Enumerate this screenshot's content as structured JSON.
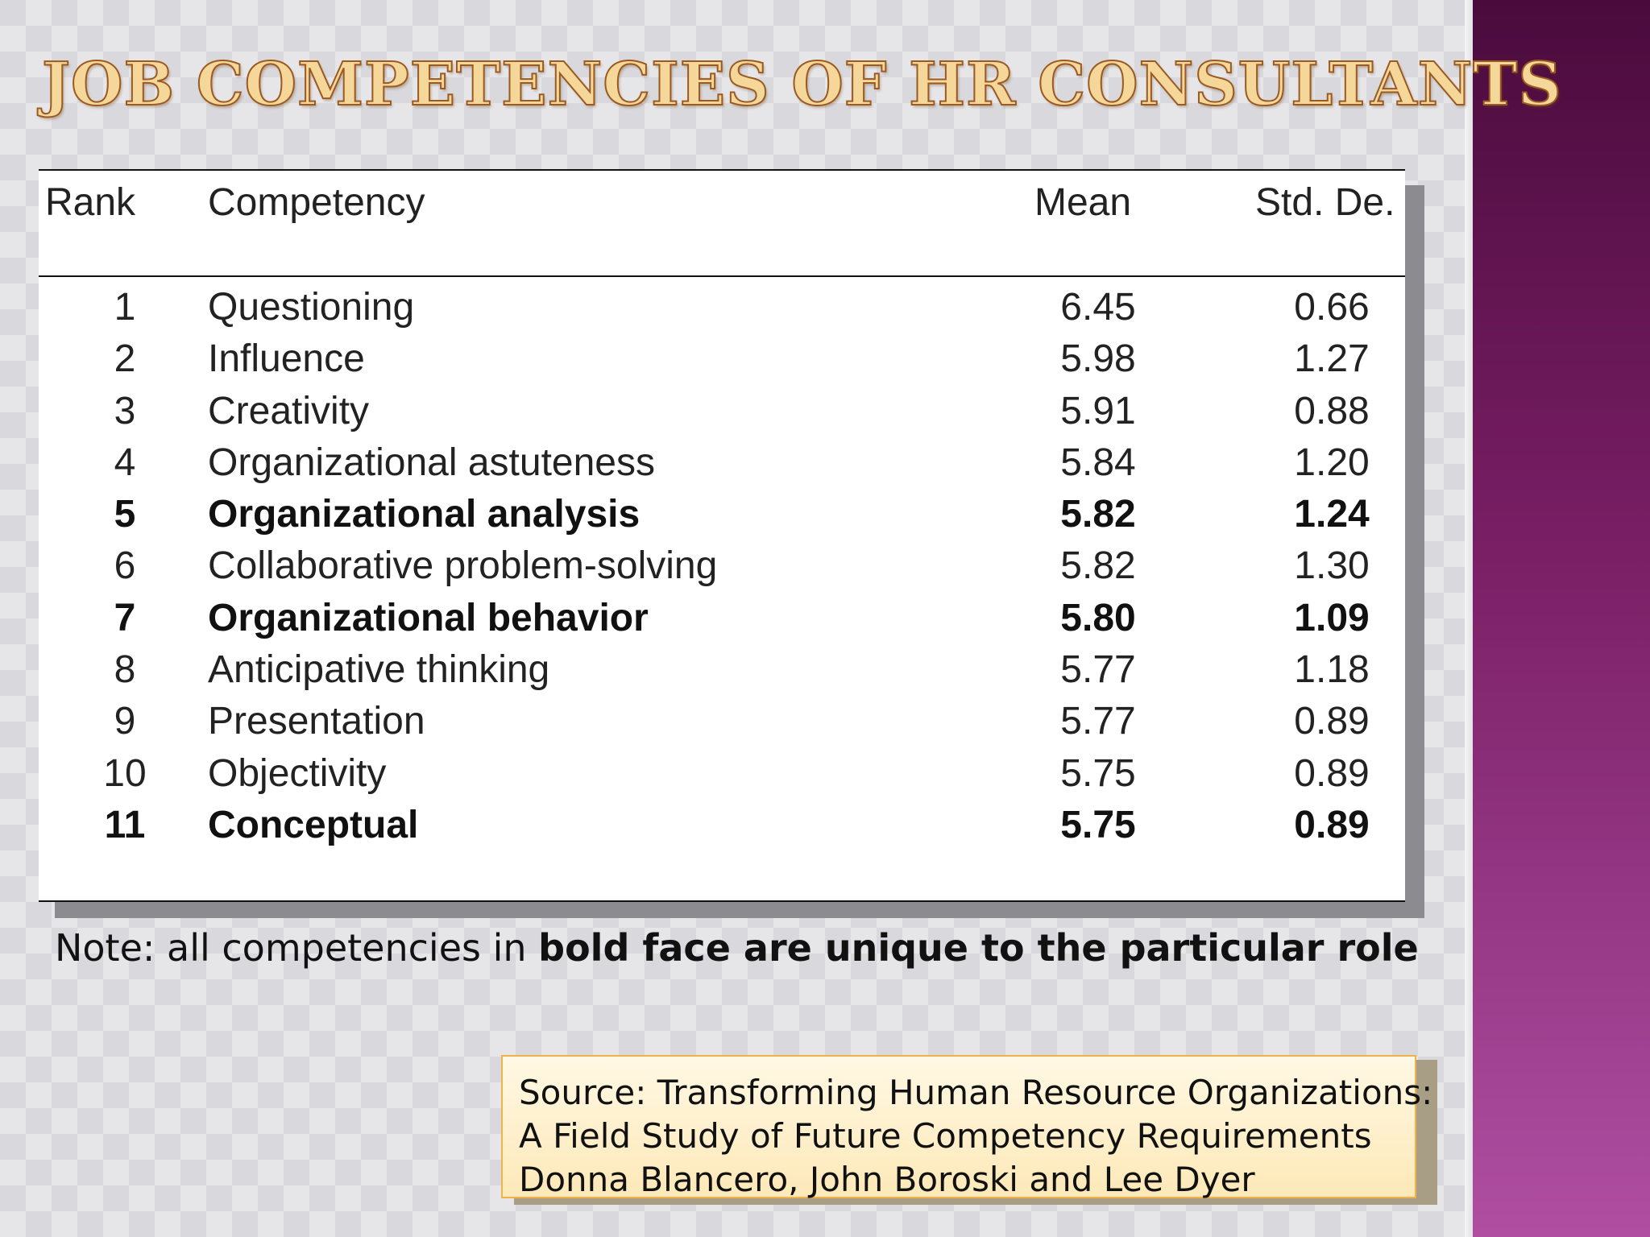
{
  "title": "JOB COMPETENCIES OF HR CONSULTANTS",
  "table": {
    "headers": {
      "rank": "Rank",
      "competency": "Competency",
      "mean": "Mean",
      "std": "Std. De."
    },
    "rows": [
      {
        "rank": "1",
        "competency": "Questioning",
        "mean": "6.45",
        "std": "0.66",
        "bold": false
      },
      {
        "rank": "2",
        "competency": "Influence",
        "mean": "5.98",
        "std": "1.27",
        "bold": false
      },
      {
        "rank": "3",
        "competency": "Creativity",
        "mean": "5.91",
        "std": "0.88",
        "bold": false
      },
      {
        "rank": "4",
        "competency": "Organizational astuteness",
        "mean": "5.84",
        "std": "1.20",
        "bold": false
      },
      {
        "rank": "5",
        "competency": "Organizational analysis",
        "mean": "5.82",
        "std": "1.24",
        "bold": true
      },
      {
        "rank": "6",
        "competency": "Collaborative problem-solving",
        "mean": "5.82",
        "std": "1.30",
        "bold": false
      },
      {
        "rank": "7",
        "competency": "Organizational behavior",
        "mean": "5.80",
        "std": "1.09",
        "bold": true
      },
      {
        "rank": "8",
        "competency": "Anticipative thinking",
        "mean": "5.77",
        "std": "1.18",
        "bold": false
      },
      {
        "rank": "9",
        "competency": "Presentation",
        "mean": "5.77",
        "std": "0.89",
        "bold": false
      },
      {
        "rank": "10",
        "competency": "Objectivity",
        "mean": "5.75",
        "std": "0.89",
        "bold": false
      },
      {
        "rank": "11",
        "competency": "Conceptual",
        "mean": "5.75",
        "std": "0.89",
        "bold": true
      }
    ]
  },
  "note": {
    "prefix": "Note: all competencies in ",
    "bold": "bold face are unique to the particular role"
  },
  "source": {
    "lines": [
      "Source: Transforming Human Resource Organizations:",
      "A Field Study of Future Competency Requirements",
      "Donna Blancero, John Boroski and Lee Dyer"
    ]
  },
  "colors": {
    "side_band_top": "#4a0b3c",
    "side_band_bottom": "#b04fa2",
    "title_fill": "#f6d79a",
    "title_outline": "#9a5a22",
    "source_border": "#f0b24a"
  }
}
